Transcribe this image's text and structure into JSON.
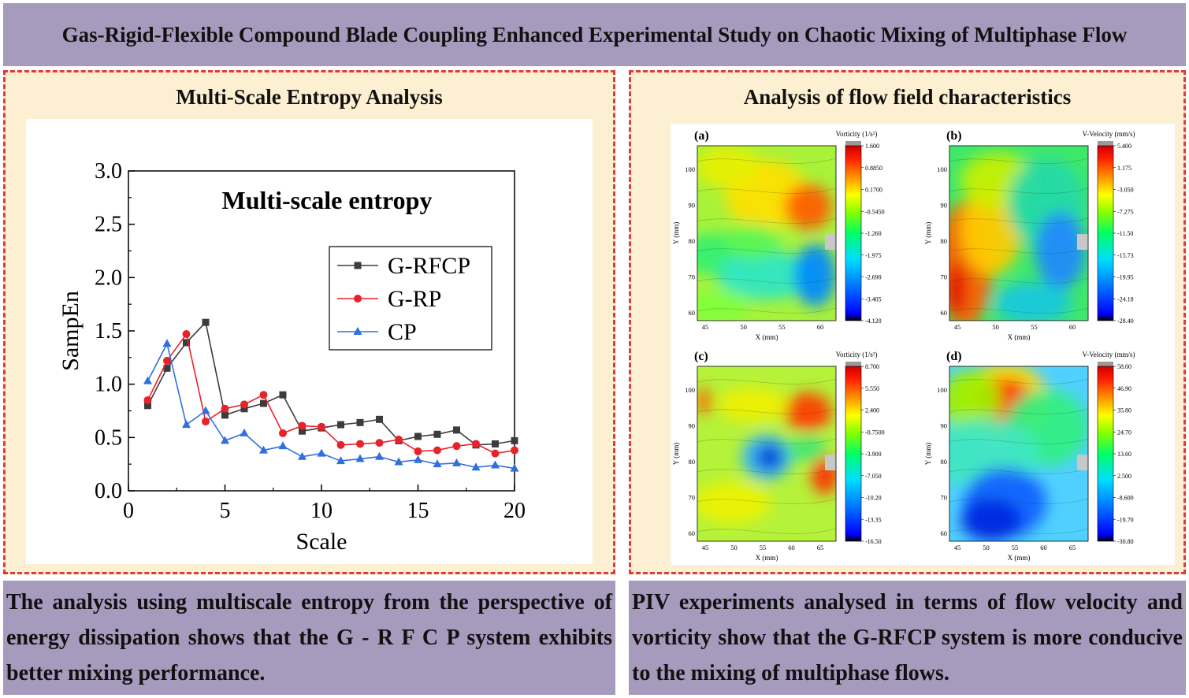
{
  "header": {
    "title": "Gas-Rigid-Flexible Compound Blade Coupling Enhanced Experimental Study on Chaotic Mixing of Multiphase Flow"
  },
  "left_panel": {
    "title": "Multi-Scale Entropy Analysis",
    "caption": "The analysis using multiscale entropy from the perspective of energy dissipation shows that the G - R F C P  system exhibits better mixing performance."
  },
  "right_panel": {
    "title": "Analysis of flow field characteristics",
    "caption": "PIV experiments analysed in terms of flow velocity and vorticity show that the G-RFCP system is more conducive to the mixing of multiphase flows."
  },
  "chart_data": {
    "type": "line",
    "title": "Multi-scale entropy",
    "xlabel": "Scale",
    "ylabel": "SampEn",
    "xlim": [
      0,
      20
    ],
    "ylim": [
      0,
      3.0
    ],
    "xticks": [
      "0",
      "5",
      "10",
      "15",
      "20"
    ],
    "yticks": [
      "0.0",
      "0.5",
      "1.0",
      "1.5",
      "2.0",
      "2.5",
      "3.0"
    ],
    "legend_position": "right",
    "grid": false,
    "x": [
      1,
      2,
      3,
      4,
      5,
      6,
      7,
      8,
      9,
      10,
      11,
      12,
      13,
      14,
      15,
      16,
      17,
      18,
      19,
      20
    ],
    "series": [
      {
        "name": "G-RFCP",
        "color": "#3c3c3c",
        "marker": "square",
        "values": [
          0.8,
          1.15,
          1.39,
          1.58,
          0.71,
          0.77,
          0.82,
          0.9,
          0.56,
          0.59,
          0.62,
          0.64,
          0.67,
          0.47,
          0.51,
          0.53,
          0.57,
          0.43,
          0.44,
          0.47
        ]
      },
      {
        "name": "G-RP",
        "color": "#e8222a",
        "marker": "circle",
        "values": [
          0.85,
          1.22,
          1.47,
          0.65,
          0.77,
          0.81,
          0.9,
          0.54,
          0.61,
          0.6,
          0.43,
          0.44,
          0.45,
          0.48,
          0.37,
          0.38,
          0.42,
          0.44,
          0.35,
          0.38
        ]
      },
      {
        "name": "CP",
        "color": "#2f6fe0",
        "marker": "triangle",
        "values": [
          1.03,
          1.38,
          0.62,
          0.75,
          0.47,
          0.54,
          0.38,
          0.42,
          0.32,
          0.35,
          0.28,
          0.3,
          0.32,
          0.27,
          0.29,
          0.25,
          0.26,
          0.22,
          0.24,
          0.21
        ]
      }
    ]
  },
  "piv_panels": [
    {
      "label": "(a)",
      "colorbar_title": "Vorticity (1/s²)",
      "xlabel": "X (mm)",
      "ylabel": "Y (mm)",
      "xticks": [
        "45",
        "50",
        "55",
        "60"
      ],
      "yticks": [
        "100",
        "90",
        "80",
        "70",
        "60"
      ],
      "colorbar_ticks": [
        "1.600",
        "0.8850",
        "0.1700",
        "-0.5450",
        "-1.260",
        "-1.975",
        "-2.690",
        "-3.405",
        "-4.120"
      ]
    },
    {
      "label": "(b)",
      "colorbar_title": "V-Velocity (mm/s)",
      "xlabel": "X (mm)",
      "ylabel": "Y (mm)",
      "xticks": [
        "45",
        "50",
        "55",
        "60"
      ],
      "yticks": [
        "100",
        "90",
        "80",
        "70",
        "60"
      ],
      "colorbar_ticks": [
        "5.400",
        "1.175",
        "-3.050",
        "-7.275",
        "-11.50",
        "-15.73",
        "-19.95",
        "-24.18",
        "-28.40"
      ]
    },
    {
      "label": "(c)",
      "colorbar_title": "Vorticity (1/s²)",
      "xlabel": "X (mm)",
      "ylabel": "Y (mm)",
      "xticks": [
        "45",
        "50",
        "55",
        "60",
        "65"
      ],
      "yticks": [
        "100",
        "90",
        "80",
        "70",
        "60"
      ],
      "colorbar_ticks": [
        "8.700",
        "5.550",
        "2.400",
        "-0.7500",
        "-3.900",
        "-7.050",
        "-10.20",
        "-13.35",
        "-16.50"
      ]
    },
    {
      "label": "(d)",
      "colorbar_title": "V-Velocity (mm/s)",
      "xlabel": "X (mm)",
      "ylabel": "Y (mm)",
      "xticks": [
        "45",
        "50",
        "55",
        "60",
        "65"
      ],
      "yticks": [
        "100",
        "90",
        "80",
        "70",
        "60"
      ],
      "colorbar_ticks": [
        "58.00",
        "46.90",
        "35.80",
        "24.70",
        "13.60",
        "2.500",
        "-8.600",
        "-19.70",
        "-30.80"
      ]
    }
  ]
}
